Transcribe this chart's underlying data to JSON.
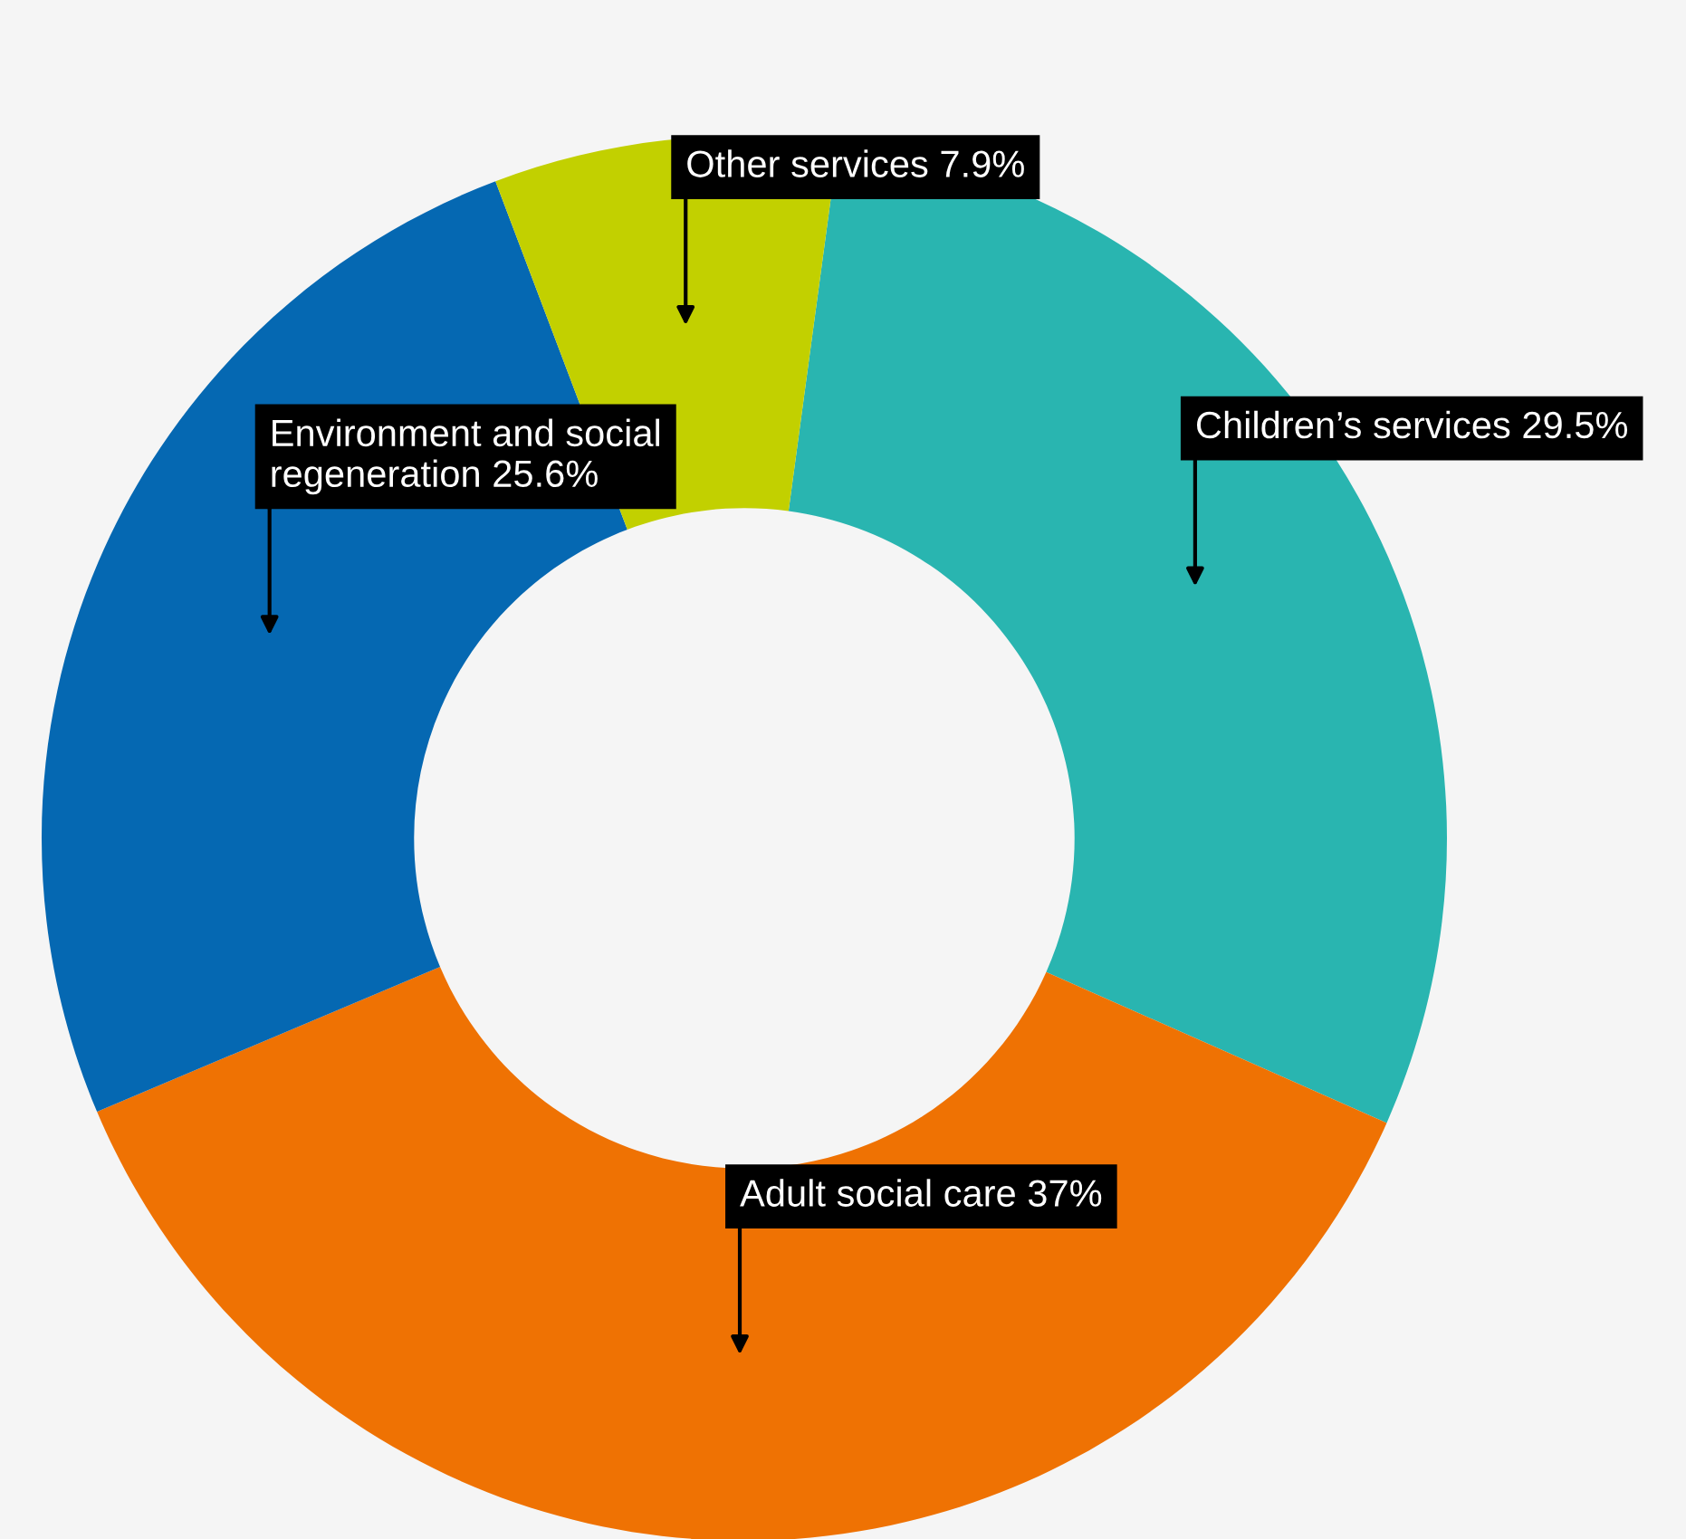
{
  "chart_data": {
    "type": "donut",
    "categories": [
      "Children’s services",
      "Adult social care",
      "Environment and social\nregeneration",
      "Other services"
    ],
    "values": [
      29.5,
      37,
      25.6,
      7.9
    ],
    "value_labels": [
      "29.5%",
      "37%",
      "25.6%",
      "7.9%"
    ],
    "colors": [
      "#29b5b0",
      "#ef7203",
      "#0568b2",
      "#c2d000"
    ],
    "legend": false
  }
}
